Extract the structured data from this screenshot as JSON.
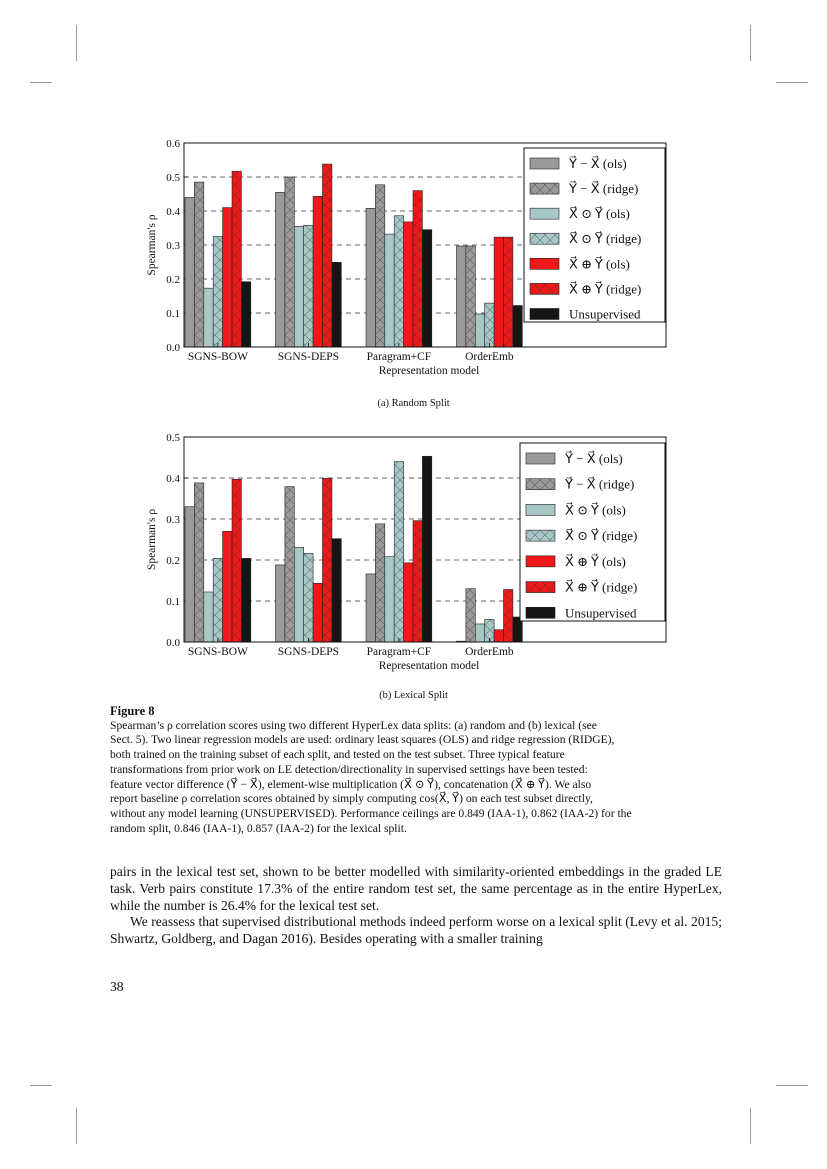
{
  "colors": {
    "gray": "#9a9a9a",
    "lightblue": "#a8c8c8",
    "red": "#f01818",
    "black": "#151515"
  },
  "legend": [
    "Y⃗ − X⃗ (ols)",
    "Y⃗ − X⃗ (ridge)",
    "X⃗ ⊙ Y⃗ (ols)",
    "X⃗ ⊙ Y⃗ (ridge)",
    "X⃗ ⊕ Y⃗ (ols)",
    "X⃗ ⊕ Y⃗ (ridge)",
    "Unsupervised"
  ],
  "chart_data": [
    {
      "type": "bar",
      "title": "(a) Random Split",
      "xlabel": "Representation model",
      "ylabel": "Spearman's ρ",
      "ylim": [
        0,
        0.6
      ],
      "yticks": [
        "0.0",
        "0.1",
        "0.2",
        "0.3",
        "0.4",
        "0.5",
        "0.6"
      ],
      "grid": "horizontal dashed",
      "legend_position": "top-right",
      "categories": [
        "SGNS-BOW",
        "SGNS-DEPS",
        "Paragram+CF",
        "OrderEmb"
      ],
      "series": [
        {
          "name": "Y-X (ols)",
          "values": [
            0.44,
            0.455,
            0.408,
            0.297
          ]
        },
        {
          "name": "Y-X (ridge)",
          "values": [
            0.485,
            0.5,
            0.477,
            0.297
          ]
        },
        {
          "name": "X⊙Y (ols)",
          "values": [
            0.173,
            0.355,
            0.332,
            0.097
          ]
        },
        {
          "name": "X⊙Y (ridge)",
          "values": [
            0.325,
            0.358,
            0.386,
            0.129
          ]
        },
        {
          "name": "X⊕Y (ols)",
          "values": [
            0.41,
            0.443,
            0.368,
            0.323
          ]
        },
        {
          "name": "X⊕Y (ridge)",
          "values": [
            0.517,
            0.538,
            0.46,
            0.323
          ]
        },
        {
          "name": "Unsupervised",
          "values": [
            0.192,
            0.249,
            0.345,
            0.122
          ]
        }
      ]
    },
    {
      "type": "bar",
      "title": "(b) Lexical Split",
      "xlabel": "Representation model",
      "ylabel": "Spearman's ρ",
      "ylim": [
        0,
        0.5
      ],
      "yticks": [
        "0.0",
        "0.1",
        "0.2",
        "0.3",
        "0.4",
        "0.5"
      ],
      "grid": "horizontal dashed",
      "legend_position": "top-right",
      "categories": [
        "SGNS-BOW",
        "SGNS-DEPS",
        "Paragram+CF",
        "OrderEmb"
      ],
      "series": [
        {
          "name": "Y-X (ols)",
          "values": [
            0.33,
            0.188,
            0.166,
            0.002
          ]
        },
        {
          "name": "Y-X (ridge)",
          "values": [
            0.388,
            0.379,
            0.288,
            0.13
          ]
        },
        {
          "name": "X⊙Y (ols)",
          "values": [
            0.122,
            0.231,
            0.208,
            0.044
          ]
        },
        {
          "name": "X⊙Y (ridge)",
          "values": [
            0.204,
            0.216,
            0.44,
            0.055
          ]
        },
        {
          "name": "X⊕Y (ols)",
          "values": [
            0.27,
            0.143,
            0.193,
            0.03
          ]
        },
        {
          "name": "X⊕Y (ridge)",
          "values": [
            0.397,
            0.399,
            0.296,
            0.128
          ]
        },
        {
          "name": "Unsupervised",
          "values": [
            0.204,
            0.252,
            0.453,
            0.061
          ]
        }
      ]
    }
  ],
  "figure": {
    "label": "Figure 8",
    "caption": [
      "Spearman’s ρ correlation scores using two different HyperLex data splits: (a) random and (b) lexical (see",
      "Sect. 5). Two linear regression models are used: ordinary least squares (OLS) and ridge regression (RIDGE),",
      "both trained on the training subset of each split, and tested on the test subset. Three typical feature",
      "transformations from prior work on LE detection/directionality in supervised settings have been tested:",
      "feature vector difference (Y⃗ − X⃗), element-wise multiplication (X⃗ ⊙ Y⃗), concatenation (X⃗ ⊕ Y⃗). We also",
      "report baseline ρ correlation scores obtained by simply computing cos(X⃗, Y⃗) on each test subset directly,",
      "without any model learning (UNSUPERVISED). Performance ceilings are 0.849 (IAA-1), 0.862 (IAA-2) for the",
      "random split, 0.846 (IAA-1), 0.857 (IAA-2) for the lexical split."
    ]
  },
  "body": {
    "p1": "pairs in the lexical test set, shown to be better modelled with similarity-oriented embeddings in the graded LE task. Verb pairs constitute 17.3% of the entire random test set, the same percentage as in the entire HyperLex, while the number is 26.4% for the lexical test set.",
    "p2": "We reassess that supervised distributional methods indeed perform worse on a lexical split (Levy et al. 2015; Shwartz, Goldberg, and Dagan 2016). Besides operating with a smaller training"
  },
  "page_number": "38"
}
